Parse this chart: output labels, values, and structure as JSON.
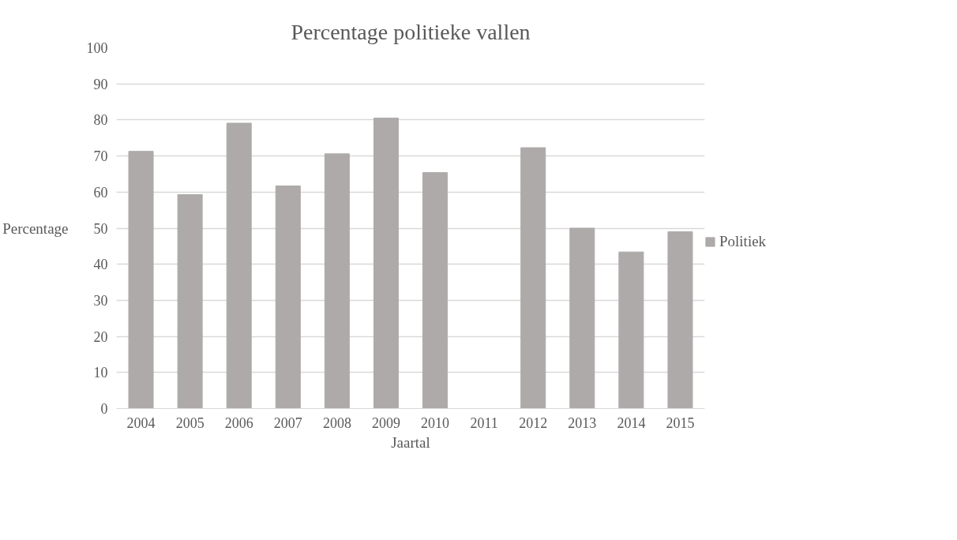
{
  "chart_data": {
    "type": "bar",
    "title": "Percentage politieke vallen",
    "xlabel": "Jaartal",
    "ylabel": "Percentage",
    "categories": [
      "2004",
      "2005",
      "2006",
      "2007",
      "2008",
      "2009",
      "2010",
      "2011",
      "2012",
      "2013",
      "2014",
      "2015"
    ],
    "series": [
      {
        "name": "Politiek",
        "color": "#aeaaaa",
        "values": [
          71.3,
          59.3,
          79.1,
          61.7,
          70.6,
          80.5,
          65.4,
          null,
          72.3,
          50.0,
          43.4,
          49.0
        ]
      }
    ],
    "ylim": [
      0,
      100
    ],
    "yticks": [
      0,
      10,
      20,
      30,
      40,
      50,
      60,
      70,
      80,
      90,
      100
    ],
    "grid": "y",
    "legend": "right"
  }
}
